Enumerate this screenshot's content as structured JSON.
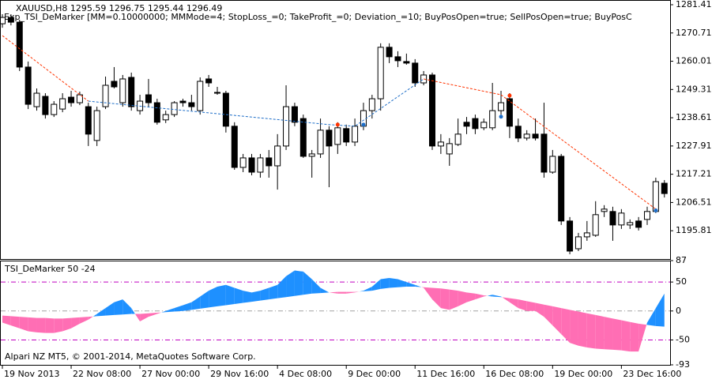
{
  "chart_data": [
    {
      "type": "candlestick",
      "title": "XAUUSD,H8  1295.59 1296.75 1295.44 1296.49",
      "subtitle": "Exp_TSI_DeMarker [MM=0.10000000; MMMode=4; StopLoss_=0; TakeProfit_=0; Deviation_=10; BuyPosOpen=true; SellPosOpen=true; BuyPosC",
      "categories": [
        "19 Nov 2013",
        null,
        null,
        null,
        null,
        null,
        null,
        null,
        "22 Nov 08:00",
        null,
        null,
        null,
        null,
        null,
        null,
        null,
        "27 Nov 00:00",
        null,
        null,
        null,
        null,
        null,
        null,
        null,
        "29 Nov 16:00",
        null,
        null,
        null,
        null,
        null,
        null,
        null,
        "4 Dec 08:00",
        null,
        null,
        null,
        null,
        null,
        null,
        null,
        "9 Dec 00:00",
        null,
        null,
        null,
        null,
        null,
        null,
        null,
        "11 Dec 16:00",
        null,
        null,
        null,
        null,
        null,
        null,
        null,
        "16 Dec 08:00",
        null,
        null,
        null,
        null,
        null,
        null,
        null,
        "19 Dec 00:00",
        null,
        null,
        null,
        null,
        null,
        null,
        null,
        "23 Dec 16:00",
        null,
        null,
        null,
        null,
        null
      ],
      "open": [
        1274.2,
        1276.6,
        1274.8,
        1257.8,
        1242.8,
        1246.7,
        1239.8,
        1241.9,
        1246.4,
        1244.3,
        1242.8,
        1230.0,
        1242.8,
        1252.4,
        1244.3,
        1253.9,
        1241.3,
        1247.3,
        1244.3,
        1237.8,
        1239.8,
        1244.9,
        1244.3,
        1241.3,
        1253.3,
        1248.2,
        1247.9,
        1235.4,
        1219.8,
        1223.4,
        1218.0,
        1223.4,
        1220.4,
        1227.9,
        1242.8,
        1238.3,
        1224.0,
        1224.9,
        1233.9,
        1228.5,
        1234.5,
        1229.4,
        1235.4,
        1241.3,
        1245.8,
        1265.3,
        1261.7,
        1259.9,
        1259.3,
        1251.8,
        1254.8,
        1227.9,
        1224.9,
        1228.5,
        1236.9,
        1238.3,
        1234.8,
        1234.8,
        1241.3,
        1245.8,
        1235.4,
        1230.9,
        1232.4,
        1232.4,
        1218.0,
        1224.0,
        1199.5,
        1189.0,
        1193.5,
        1194.1,
        1203.1,
        1203.1,
        1198.0,
        1198.0,
        1199.5,
        1200.1,
        1203.1,
        1213.8
      ],
      "high": [
        1277.8,
        1277.8,
        1275.7,
        1259.9,
        1249.7,
        1247.9,
        1244.9,
        1247.9,
        1248.8,
        1248.5,
        1244.3,
        1242.8,
        1254.2,
        1257.8,
        1254.8,
        1255.7,
        1247.3,
        1253.3,
        1245.8,
        1241.3,
        1244.9,
        1245.8,
        1247.3,
        1253.9,
        1254.8,
        1250.3,
        1248.8,
        1236.9,
        1224.9,
        1224.9,
        1224.9,
        1226.4,
        1232.4,
        1250.9,
        1244.3,
        1239.8,
        1226.4,
        1238.3,
        1235.4,
        1236.9,
        1236.0,
        1238.3,
        1244.3,
        1247.3,
        1266.8,
        1266.8,
        1263.8,
        1262.9,
        1260.8,
        1256.3,
        1255.7,
        1232.4,
        1230.9,
        1238.3,
        1238.9,
        1239.8,
        1238.3,
        1251.8,
        1248.8,
        1247.9,
        1238.3,
        1233.9,
        1238.3,
        1244.3,
        1226.4,
        1224.9,
        1201.0,
        1195.0,
        1199.5,
        1207.0,
        1205.5,
        1204.9,
        1204.0,
        1200.1,
        1201.0,
        1204.9,
        1215.9,
        1215.0
      ],
      "low": [
        1272.7,
        1273.6,
        1256.3,
        1241.9,
        1241.3,
        1238.3,
        1238.9,
        1240.7,
        1242.8,
        1243.4,
        1227.9,
        1227.9,
        1241.9,
        1249.7,
        1242.8,
        1241.3,
        1239.8,
        1242.8,
        1236.0,
        1236.6,
        1238.9,
        1242.8,
        1241.3,
        1239.8,
        1250.3,
        1247.3,
        1233.0,
        1218.9,
        1218.0,
        1216.8,
        1215.9,
        1215.9,
        1211.4,
        1226.4,
        1235.4,
        1223.4,
        1215.9,
        1223.4,
        1212.3,
        1224.9,
        1227.9,
        1227.9,
        1233.9,
        1238.3,
        1241.3,
        1259.3,
        1257.8,
        1258.7,
        1250.3,
        1250.9,
        1226.4,
        1224.9,
        1220.4,
        1227.9,
        1232.4,
        1232.4,
        1233.9,
        1233.9,
        1239.8,
        1230.9,
        1229.4,
        1230.0,
        1230.0,
        1215.9,
        1217.4,
        1198.0,
        1186.9,
        1188.1,
        1192.0,
        1193.5,
        1201.0,
        1192.0,
        1196.5,
        1196.5,
        1195.9,
        1198.0,
        1202.5,
        1208.4
      ],
      "close": [
        1276.6,
        1274.8,
        1257.8,
        1243.7,
        1247.9,
        1239.8,
        1243.7,
        1245.8,
        1244.3,
        1247.3,
        1232.4,
        1241.3,
        1250.9,
        1250.3,
        1253.3,
        1242.8,
        1244.9,
        1244.3,
        1236.9,
        1239.8,
        1244.3,
        1244.3,
        1242.8,
        1252.4,
        1251.8,
        1247.9,
        1235.4,
        1219.8,
        1223.4,
        1218.0,
        1223.4,
        1220.4,
        1227.9,
        1242.8,
        1236.9,
        1224.0,
        1224.9,
        1233.9,
        1227.9,
        1234.8,
        1229.4,
        1235.4,
        1241.3,
        1245.8,
        1265.3,
        1261.7,
        1260.2,
        1259.3,
        1251.8,
        1254.8,
        1227.9,
        1229.4,
        1228.8,
        1232.4,
        1235.4,
        1234.5,
        1236.9,
        1241.3,
        1244.3,
        1235.4,
        1230.9,
        1232.4,
        1230.9,
        1218.0,
        1224.0,
        1199.5,
        1188.1,
        1193.5,
        1195.0,
        1201.9,
        1204.0,
        1198.0,
        1202.5,
        1198.9,
        1197.1,
        1203.1,
        1214.4,
        1209.9
      ],
      "trend_lines": [
        {
          "color": "#ff3300",
          "x": [
            0,
            10
          ],
          "values": [
            1269.7,
            1244.9
          ]
        },
        {
          "color": "#1e6ec8",
          "x": [
            10,
            38,
            41,
            49
          ],
          "values": [
            1244.9,
            1236.0,
            1235.4,
            1253.3
          ]
        },
        {
          "color": "#ff3300",
          "x": [
            49,
            58,
            76
          ],
          "values": [
            1253.3,
            1247.3,
            1204.0
          ]
        }
      ],
      "signals": [
        {
          "color": "#ff3300",
          "x": [
            39,
            59
          ],
          "values": [
            1236.0,
            1247.0
          ]
        },
        {
          "color": "#1e6ec8",
          "x": [
            42,
            58,
            76
          ],
          "values": [
            1236.0,
            1239.0,
            1203.5
          ]
        }
      ],
      "ylim": [
        1185.1,
        1283.2
      ],
      "yticks": [
        1281.41,
        1270.71,
        1260.01,
        1249.31,
        1238.61,
        1227.91,
        1217.21,
        1206.51,
        1195.81
      ]
    },
    {
      "type": "area_band",
      "title": "TSI_DeMarker 50 -24",
      "annotation": "Alpari NZ MT5, © 2001-2014, MetaQuotes Software Corp.",
      "series": [
        {
          "values": [
            -20,
            -25,
            -30,
            -35,
            -37,
            -38,
            -38,
            -35,
            -30,
            -22,
            -15,
            -5,
            5,
            15,
            20,
            5,
            -18,
            -10,
            -5,
            0,
            5,
            10,
            15,
            25,
            35,
            42,
            45,
            40,
            35,
            32,
            35,
            40,
            45,
            60,
            70,
            68,
            55,
            40,
            32,
            30,
            30,
            32,
            35,
            42,
            55,
            57,
            55,
            50,
            45,
            40,
            20,
            5,
            2,
            8,
            15,
            20,
            25,
            28,
            25,
            15,
            5,
            0,
            0,
            -10,
            -25,
            -40,
            -55,
            -60,
            -63,
            -65,
            -66,
            -67,
            -68,
            -70,
            -70,
            -20,
            5,
            30
          ]
        },
        {
          "values": [
            -8,
            -9,
            -10,
            -11,
            -12,
            -12,
            -13,
            -13,
            -12,
            -11,
            -10,
            -9,
            -8,
            -7,
            -6,
            -5,
            -5,
            -4,
            -3,
            -2,
            -1,
            0,
            2,
            4,
            6,
            8,
            10,
            12,
            14,
            16,
            18,
            20,
            22,
            24,
            26,
            28,
            30,
            31,
            32,
            33,
            33,
            33,
            34,
            35,
            38,
            40,
            41,
            42,
            42,
            41,
            40,
            39,
            37,
            35,
            32,
            30,
            27,
            25,
            24,
            22,
            20,
            17,
            14,
            11,
            8,
            5,
            2,
            -1,
            -4,
            -7,
            -10,
            -13,
            -16,
            -19,
            -22,
            -24,
            -26,
            -27
          ]
        }
      ],
      "above_color": "#1e90ff",
      "below_color": "#ff6eb4",
      "levels": [
        50,
        0,
        -50
      ],
      "level_colors": [
        "#c000c0",
        "#a0a0a0",
        "#c000c0"
      ],
      "ylim": [
        -93,
        87
      ],
      "yticks": [
        87,
        50,
        0,
        -50,
        -93
      ]
    }
  ]
}
